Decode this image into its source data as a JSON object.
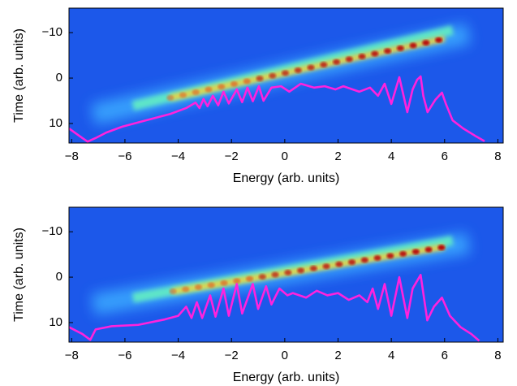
{
  "chart_data": [
    {
      "type": "line",
      "xlabel": "Energy (arb. units)",
      "ylabel": "Time (arb. units)",
      "xlim": [
        -8.1,
        8.2
      ],
      "ylim": [
        -15.4,
        14.3
      ],
      "y_inverted": true,
      "xticks": [
        {
          "value": -8,
          "label": "−8"
        },
        {
          "value": -6,
          "label": "−6"
        },
        {
          "value": -4,
          "label": "−4"
        },
        {
          "value": -2,
          "label": "−2"
        },
        0,
        2,
        4,
        6,
        8
      ],
      "yticks": [
        {
          "value": -10,
          "label": "−10"
        },
        0,
        10
      ],
      "series": [
        {
          "color": "#ff22dd",
          "x": [
            -8.1,
            -7.6,
            -7.4,
            -7.1,
            -6.7,
            -6.1,
            -5.2,
            -4.3,
            -3.7,
            -3.35,
            -3.2,
            -3.05,
            -2.9,
            -2.7,
            -2.5,
            -2.3,
            -2.1,
            -1.8,
            -1.6,
            -1.4,
            -1.2,
            -0.97,
            -0.8,
            -0.5,
            -0.14,
            0.17,
            0.6,
            1.1,
            1.5,
            1.9,
            2.2,
            2.8,
            3.2,
            3.5,
            3.75,
            4.0,
            4.3,
            4.6,
            4.8,
            4.97,
            5.1,
            5.2,
            5.36,
            5.65,
            5.9,
            6.05,
            6.3,
            6.7,
            7.2,
            7.5
          ],
          "values": [
            11.1,
            13.2,
            14.0,
            13.2,
            12.0,
            10.7,
            9.3,
            7.9,
            6.6,
            5.4,
            6.6,
            4.6,
            6.2,
            3.9,
            6.0,
            3.0,
            5.6,
            2.5,
            5.3,
            2.1,
            5.1,
            1.8,
            5.0,
            2.1,
            1.8,
            3.0,
            1.25,
            2.1,
            1.8,
            2.5,
            1.8,
            3.0,
            2.1,
            3.9,
            1.25,
            5.7,
            -0.2,
            7.5,
            2.5,
            0.36,
            -0.36,
            3.9,
            7.5,
            4.8,
            3.2,
            5.7,
            9.3,
            11.1,
            12.9,
            13.9
          ]
        }
      ]
    },
    {
      "type": "line",
      "xlabel": "Energy (arb. units)",
      "ylabel": "Time (arb. units)",
      "xlim": [
        -8.1,
        8.2
      ],
      "ylim": [
        -15.4,
        14.3
      ],
      "y_inverted": true,
      "xticks": [
        {
          "value": -8,
          "label": "−8"
        },
        {
          "value": -6,
          "label": "−6"
        },
        {
          "value": -4,
          "label": "−4"
        },
        {
          "value": -2,
          "label": "−2"
        },
        0,
        2,
        4,
        6,
        8
      ],
      "yticks": [
        {
          "value": -10,
          "label": "−10"
        },
        0,
        10
      ],
      "series": [
        {
          "color": "#ff22dd",
          "x": [
            -8.1,
            -7.6,
            -7.3,
            -7.1,
            -6.5,
            -5.5,
            -4.5,
            -4.0,
            -3.7,
            -3.5,
            -3.3,
            -3.1,
            -2.8,
            -2.6,
            -2.3,
            -2.1,
            -1.8,
            -1.6,
            -1.2,
            -1.0,
            -0.7,
            -0.5,
            -0.2,
            0.1,
            0.3,
            0.8,
            1.2,
            1.6,
            2.0,
            2.4,
            2.8,
            3.1,
            3.3,
            3.5,
            3.75,
            4.0,
            4.3,
            4.6,
            4.8,
            5.1,
            5.35,
            5.6,
            5.9,
            6.2,
            6.6,
            7.0,
            7.3
          ],
          "values": [
            11,
            12.5,
            13.8,
            11.5,
            10.8,
            10.5,
            9.3,
            8.5,
            6.5,
            9,
            5.5,
            9,
            4,
            8.7,
            2.5,
            8.5,
            1.5,
            8,
            1.5,
            7,
            2,
            6,
            2.5,
            4,
            3.5,
            4.5,
            3,
            4,
            3.5,
            5,
            4,
            5.5,
            2.5,
            7,
            1.5,
            8.5,
            0,
            9,
            2.5,
            -0.5,
            9.5,
            6.5,
            4.5,
            8.5,
            11,
            12.5,
            14
          ]
        }
      ]
    }
  ]
}
